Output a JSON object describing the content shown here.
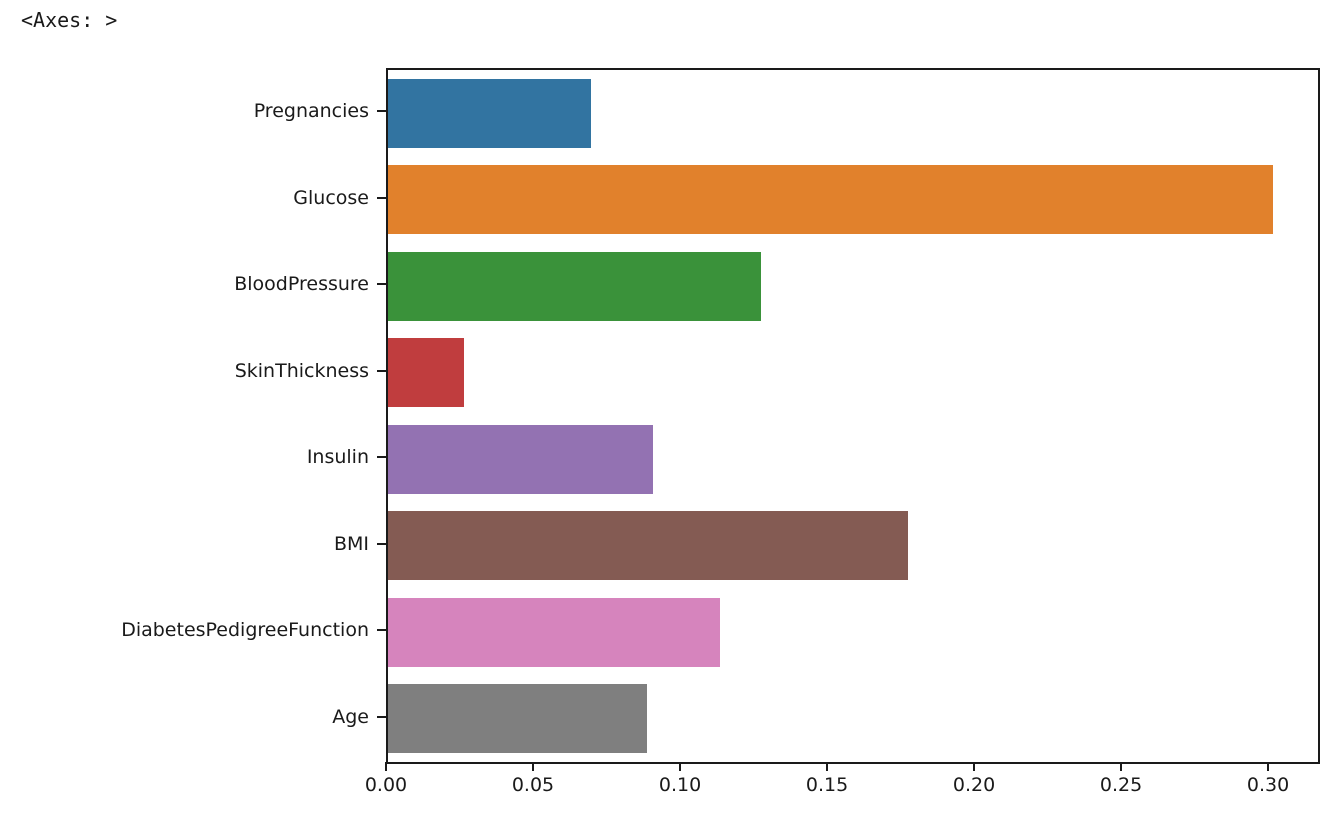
{
  "repr_text": "<Axes: >",
  "colors": {
    "background": "#ffffff",
    "text": "#1a1a1a",
    "spine": "#1a1a1a"
  },
  "chart_data": {
    "type": "bar",
    "orientation": "horizontal",
    "title": "",
    "xlabel": "",
    "ylabel": "",
    "grid": false,
    "legend": null,
    "categories": [
      "Pregnancies",
      "Glucose",
      "BloodPressure",
      "SkinThickness",
      "Insulin",
      "BMI",
      "DiabetesPedigreeFunction",
      "Age"
    ],
    "values": [
      0.069,
      0.301,
      0.127,
      0.026,
      0.09,
      0.177,
      0.113,
      0.088
    ],
    "bar_colors": [
      "#3274a1",
      "#e1812c",
      "#3a923a",
      "#c03d3e",
      "#9372b2",
      "#845b53",
      "#d684bd",
      "#7f7f7f"
    ],
    "xlim": [
      0,
      0.3163
    ],
    "x_ticks": [
      0.0,
      0.05,
      0.1,
      0.15,
      0.2,
      0.25,
      0.3
    ],
    "x_tick_labels": [
      "0.00",
      "0.05",
      "0.10",
      "0.15",
      "0.20",
      "0.25",
      "0.30"
    ],
    "bar_band_fraction": 0.8
  }
}
